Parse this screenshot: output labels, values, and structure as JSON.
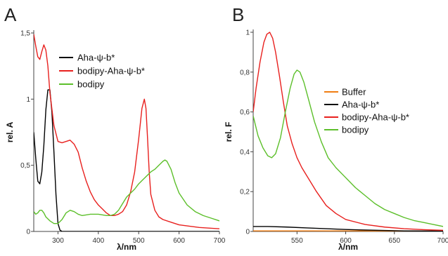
{
  "chart_data": [
    {
      "panel": "A",
      "type": "line",
      "xlabel": "λ/nm",
      "ylabel": "rel. A",
      "xlim": [
        240,
        700
      ],
      "ylim": [
        0,
        1.5
      ],
      "xticks": [
        {
          "v": 300,
          "t": "300"
        },
        {
          "v": 400,
          "t": "400"
        },
        {
          "v": 500,
          "t": "500"
        },
        {
          "v": 600,
          "t": "600"
        },
        {
          "v": 700,
          "t": "700"
        }
      ],
      "yticks": [
        {
          "v": 0,
          "t": "0"
        },
        {
          "v": 0.5,
          "t": "0,5"
        },
        {
          "v": 1,
          "t": "1"
        },
        {
          "v": 1.5,
          "t": "1,5"
        }
      ],
      "legend_position": "upper-center",
      "series": [
        {
          "name": "Aha-ψ-b*",
          "color": "#000000",
          "points": [
            [
              240,
              0.75
            ],
            [
              245,
              0.55
            ],
            [
              250,
              0.38
            ],
            [
              255,
              0.36
            ],
            [
              260,
              0.45
            ],
            [
              265,
              0.65
            ],
            [
              270,
              0.92
            ],
            [
              275,
              1.07
            ],
            [
              280,
              1.07
            ],
            [
              285,
              0.9
            ],
            [
              290,
              0.6
            ],
            [
              295,
              0.28
            ],
            [
              300,
              0.06
            ],
            [
              305,
              0.01
            ],
            [
              310,
              0.0
            ],
            [
              400,
              0.0
            ],
            [
              500,
              0.0
            ],
            [
              600,
              0.0
            ],
            [
              700,
              0.0
            ]
          ]
        },
        {
          "name": "bodipy-Aha-ψ-b*",
          "color": "#e8201e",
          "points": [
            [
              240,
              1.49
            ],
            [
              245,
              1.4
            ],
            [
              250,
              1.32
            ],
            [
              255,
              1.3
            ],
            [
              260,
              1.36
            ],
            [
              265,
              1.41
            ],
            [
              270,
              1.37
            ],
            [
              275,
              1.25
            ],
            [
              280,
              1.05
            ],
            [
              290,
              0.8
            ],
            [
              300,
              0.68
            ],
            [
              310,
              0.67
            ],
            [
              320,
              0.68
            ],
            [
              330,
              0.69
            ],
            [
              340,
              0.66
            ],
            [
              350,
              0.6
            ],
            [
              360,
              0.48
            ],
            [
              370,
              0.38
            ],
            [
              380,
              0.3
            ],
            [
              390,
              0.24
            ],
            [
              400,
              0.2
            ],
            [
              410,
              0.17
            ],
            [
              420,
              0.14
            ],
            [
              430,
              0.12
            ],
            [
              440,
              0.12
            ],
            [
              450,
              0.13
            ],
            [
              460,
              0.15
            ],
            [
              470,
              0.2
            ],
            [
              480,
              0.3
            ],
            [
              490,
              0.45
            ],
            [
              500,
              0.7
            ],
            [
              508,
              0.93
            ],
            [
              514,
              1.0
            ],
            [
              518,
              0.93
            ],
            [
              522,
              0.7
            ],
            [
              526,
              0.45
            ],
            [
              530,
              0.28
            ],
            [
              540,
              0.16
            ],
            [
              550,
              0.11
            ],
            [
              560,
              0.09
            ],
            [
              580,
              0.07
            ],
            [
              600,
              0.05
            ],
            [
              650,
              0.03
            ],
            [
              700,
              0.02
            ]
          ]
        },
        {
          "name": "bodipy",
          "color": "#5cbf2a",
          "points": [
            [
              240,
              0.15
            ],
            [
              245,
              0.13
            ],
            [
              250,
              0.14
            ],
            [
              255,
              0.16
            ],
            [
              260,
              0.16
            ],
            [
              265,
              0.14
            ],
            [
              270,
              0.11
            ],
            [
              280,
              0.08
            ],
            [
              290,
              0.06
            ],
            [
              300,
              0.06
            ],
            [
              310,
              0.09
            ],
            [
              320,
              0.14
            ],
            [
              330,
              0.16
            ],
            [
              340,
              0.15
            ],
            [
              350,
              0.13
            ],
            [
              360,
              0.12
            ],
            [
              380,
              0.13
            ],
            [
              400,
              0.13
            ],
            [
              420,
              0.12
            ],
            [
              430,
              0.12
            ],
            [
              440,
              0.13
            ],
            [
              450,
              0.16
            ],
            [
              460,
              0.21
            ],
            [
              470,
              0.26
            ],
            [
              480,
              0.29
            ],
            [
              490,
              0.32
            ],
            [
              500,
              0.36
            ],
            [
              510,
              0.39
            ],
            [
              520,
              0.42
            ],
            [
              530,
              0.45
            ],
            [
              540,
              0.47
            ],
            [
              550,
              0.5
            ],
            [
              560,
              0.53
            ],
            [
              565,
              0.54
            ],
            [
              570,
              0.53
            ],
            [
              580,
              0.47
            ],
            [
              590,
              0.37
            ],
            [
              600,
              0.29
            ],
            [
              620,
              0.2
            ],
            [
              640,
              0.15
            ],
            [
              660,
              0.12
            ],
            [
              680,
              0.1
            ],
            [
              700,
              0.08
            ]
          ]
        }
      ]
    },
    {
      "panel": "B",
      "type": "line",
      "xlabel": "λ/nm",
      "ylabel": "rel. F",
      "xlim": [
        505,
        700
      ],
      "ylim": [
        0,
        1
      ],
      "xticks": [
        {
          "v": 550,
          "t": "550"
        },
        {
          "v": 600,
          "t": "600"
        },
        {
          "v": 650,
          "t": "650"
        },
        {
          "v": 700,
          "t": "700"
        }
      ],
      "yticks": [
        {
          "v": 0,
          "t": "0"
        },
        {
          "v": 0.2,
          "t": "0,2"
        },
        {
          "v": 0.4,
          "t": "0,4"
        },
        {
          "v": 0.6,
          "t": "0,6"
        },
        {
          "v": 0.8,
          "t": "0,8"
        },
        {
          "v": 1,
          "t": "1"
        }
      ],
      "legend_position": "center-right",
      "series": [
        {
          "name": "Buffer",
          "color": "#f07d12",
          "points": [
            [
              505,
              0.003
            ],
            [
              550,
              0.003
            ],
            [
              600,
              0.003
            ],
            [
              650,
              0.002
            ],
            [
              700,
              0.002
            ]
          ]
        },
        {
          "name": "Aha-ψ-b*",
          "color": "#000000",
          "points": [
            [
              505,
              0.025
            ],
            [
              520,
              0.025
            ],
            [
              540,
              0.022
            ],
            [
              560,
              0.018
            ],
            [
              580,
              0.014
            ],
            [
              600,
              0.01
            ],
            [
              620,
              0.007
            ],
            [
              640,
              0.005
            ],
            [
              660,
              0.003
            ],
            [
              700,
              0.002
            ]
          ]
        },
        {
          "name": "bodipy-Aha-ψ-b*",
          "color": "#e8201e",
          "points": [
            [
              505,
              0.6
            ],
            [
              508,
              0.72
            ],
            [
              512,
              0.85
            ],
            [
              516,
              0.95
            ],
            [
              519,
              0.99
            ],
            [
              522,
              1.0
            ],
            [
              525,
              0.97
            ],
            [
              528,
              0.9
            ],
            [
              532,
              0.78
            ],
            [
              536,
              0.65
            ],
            [
              540,
              0.53
            ],
            [
              545,
              0.44
            ],
            [
              550,
              0.37
            ],
            [
              555,
              0.32
            ],
            [
              560,
              0.28
            ],
            [
              570,
              0.2
            ],
            [
              580,
              0.13
            ],
            [
              590,
              0.09
            ],
            [
              600,
              0.06
            ],
            [
              620,
              0.035
            ],
            [
              640,
              0.022
            ],
            [
              660,
              0.014
            ],
            [
              680,
              0.009
            ],
            [
              700,
              0.006
            ]
          ]
        },
        {
          "name": "bodipy",
          "color": "#5cbf2a",
          "points": [
            [
              505,
              0.58
            ],
            [
              510,
              0.48
            ],
            [
              515,
              0.42
            ],
            [
              520,
              0.38
            ],
            [
              524,
              0.37
            ],
            [
              528,
              0.39
            ],
            [
              533,
              0.47
            ],
            [
              538,
              0.6
            ],
            [
              543,
              0.72
            ],
            [
              547,
              0.79
            ],
            [
              550,
              0.81
            ],
            [
              553,
              0.8
            ],
            [
              557,
              0.75
            ],
            [
              562,
              0.66
            ],
            [
              568,
              0.55
            ],
            [
              575,
              0.45
            ],
            [
              582,
              0.37
            ],
            [
              590,
              0.32
            ],
            [
              600,
              0.27
            ],
            [
              610,
              0.22
            ],
            [
              620,
              0.18
            ],
            [
              630,
              0.14
            ],
            [
              640,
              0.11
            ],
            [
              650,
              0.09
            ],
            [
              660,
              0.07
            ],
            [
              670,
              0.055
            ],
            [
              680,
              0.045
            ],
            [
              690,
              0.035
            ],
            [
              700,
              0.025
            ]
          ]
        }
      ]
    }
  ]
}
